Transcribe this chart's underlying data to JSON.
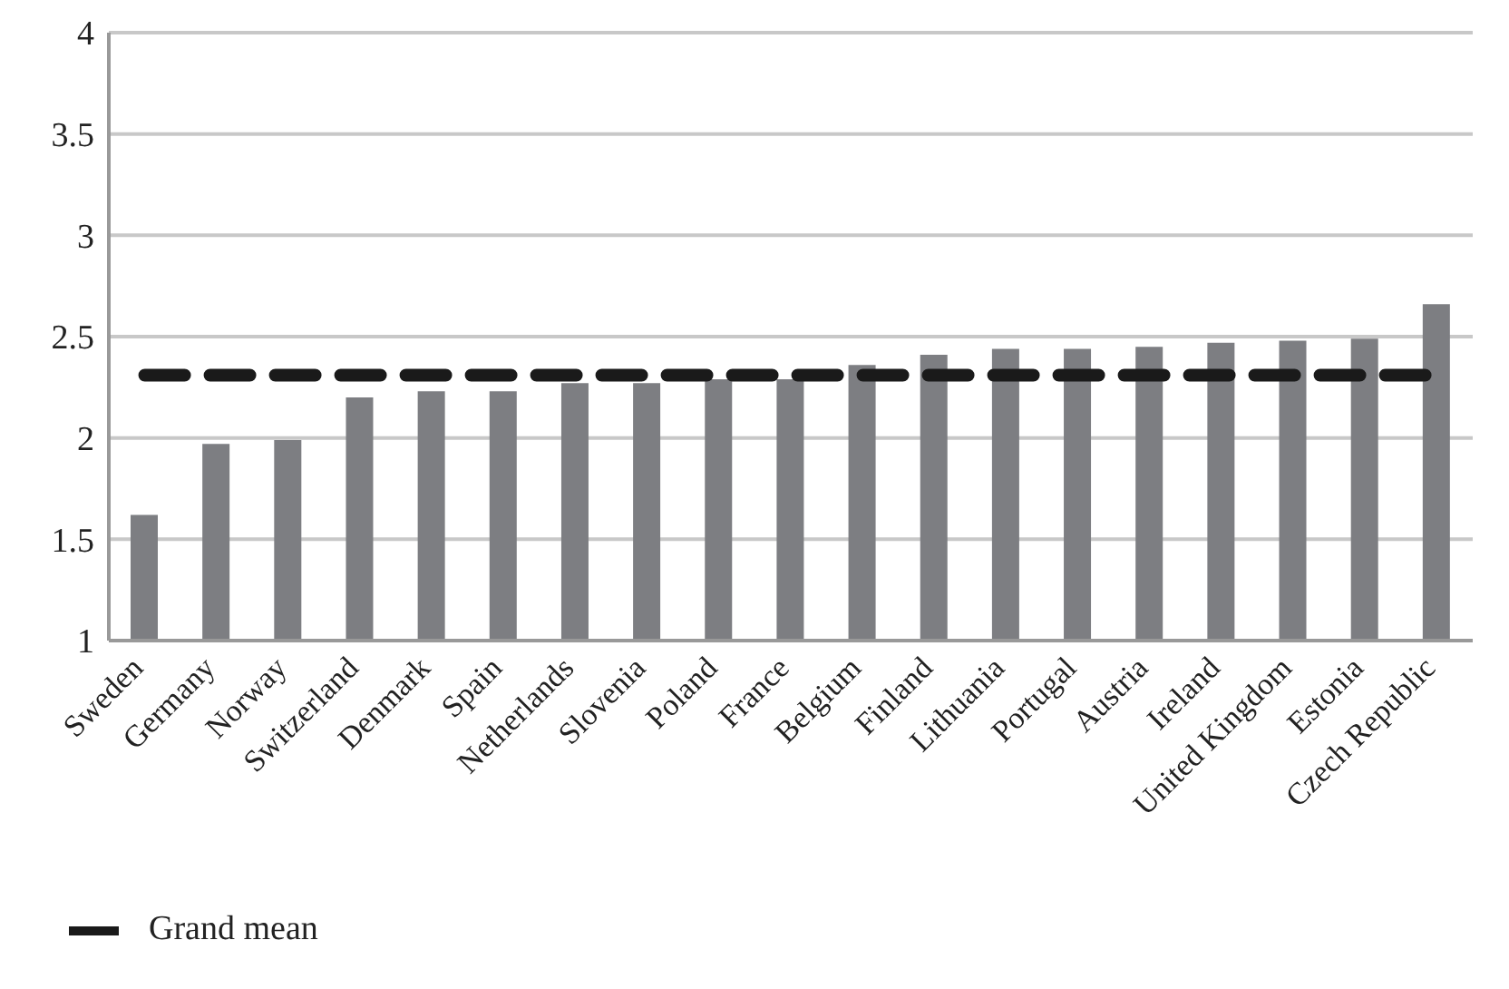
{
  "chart_data": {
    "type": "bar",
    "categories": [
      "Sweden",
      "Germany",
      "Norway",
      "Switzerland",
      "Denmark",
      "Spain",
      "Netherlands",
      "Slovenia",
      "Poland",
      "France",
      "Belgium",
      "Finland",
      "Lithuania",
      "Portugal",
      "Austria",
      "Ireland",
      "United Kingdom",
      "Estonia",
      "Czech Republic"
    ],
    "series": [
      {
        "color": "#7d7e82",
        "values": [
          1.62,
          1.97,
          1.99,
          2.2,
          2.23,
          2.23,
          2.27,
          2.27,
          2.29,
          2.29,
          2.36,
          2.41,
          2.44,
          2.44,
          2.45,
          2.47,
          2.48,
          2.49,
          2.66
        ]
      },
      {
        "type": "line",
        "name": "Grand mean",
        "color": "#1a1a1a",
        "line_style": "dashed",
        "marker": "none",
        "values": [
          2.31,
          2.31,
          2.31,
          2.31,
          2.31,
          2.31,
          2.31,
          2.31,
          2.31,
          2.31,
          2.31,
          2.31,
          2.31,
          2.31,
          2.31,
          2.31,
          2.31,
          2.31,
          2.31
        ]
      }
    ],
    "ylim": [
      1,
      4
    ],
    "yticks": [
      1,
      1.5,
      2,
      2.5,
      3,
      3.5,
      4
    ],
    "grid": "y",
    "legend": "bottom left"
  }
}
